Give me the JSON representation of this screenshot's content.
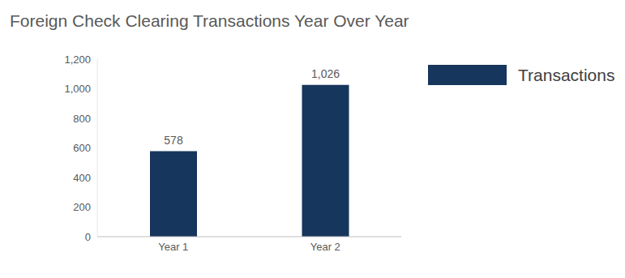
{
  "chart_data": {
    "type": "bar",
    "title": "Foreign Check Clearing Transactions Year Over Year",
    "categories": [
      "Year 1",
      "Year 2"
    ],
    "series": [
      {
        "name": "Transactions",
        "color": "#17365d",
        "values": [
          578,
          1026
        ],
        "value_labels": [
          "578",
          "1,026"
        ]
      }
    ],
    "ylim": [
      0,
      1200
    ],
    "yticks": [
      0,
      200,
      400,
      600,
      800,
      {
        "value": 1000,
        "label": "1,000"
      },
      {
        "value": 1200,
        "label": "1,200"
      }
    ],
    "grid": false,
    "legend": "right",
    "data_labels": true
  }
}
